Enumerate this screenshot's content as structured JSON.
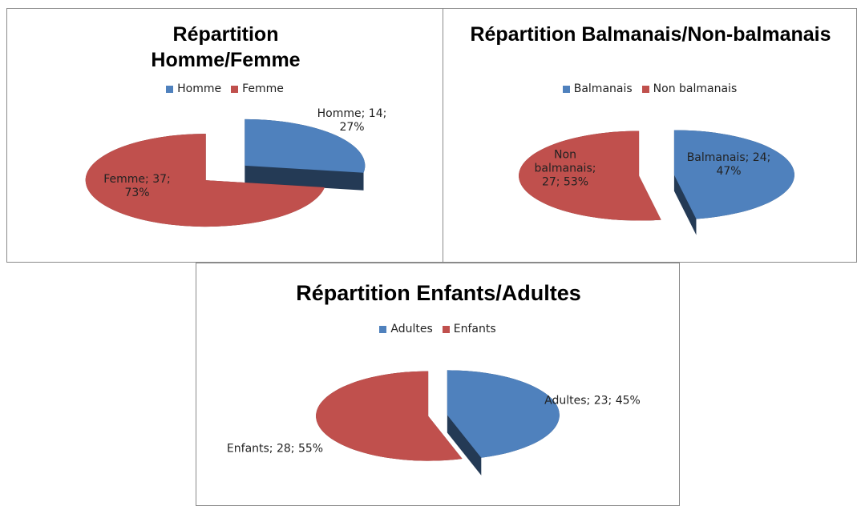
{
  "chart_data": [
    {
      "type": "pie",
      "title": "Répartition Homme/Femme",
      "categories": [
        "Homme",
        "Femme"
      ],
      "values": [
        14,
        37
      ],
      "value_labels": [
        "Homme; 14; 27%",
        "Femme; 37; 73%"
      ],
      "colors": [
        "#4f81bd",
        "#c0504d"
      ],
      "legend": "top"
    },
    {
      "type": "pie",
      "title": "Répartition Balmanais/Non-balmanais",
      "categories": [
        "Balmanais",
        "Non balmanais"
      ],
      "values": [
        24,
        27
      ],
      "value_labels": [
        "Balmanais; 24; 47%",
        "Non balmanais; 27; 53%"
      ],
      "colors": [
        "#4f81bd",
        "#c0504d"
      ],
      "legend": "top"
    },
    {
      "type": "pie",
      "title": "Répartition Enfants/Adultes",
      "categories": [
        "Adultes",
        "Enfants"
      ],
      "values": [
        23,
        28
      ],
      "value_labels": [
        "Adultes; 23; 45%",
        "Enfants; 28; 55%"
      ],
      "colors": [
        "#4f81bd",
        "#c0504d"
      ],
      "legend": "top"
    }
  ]
}
